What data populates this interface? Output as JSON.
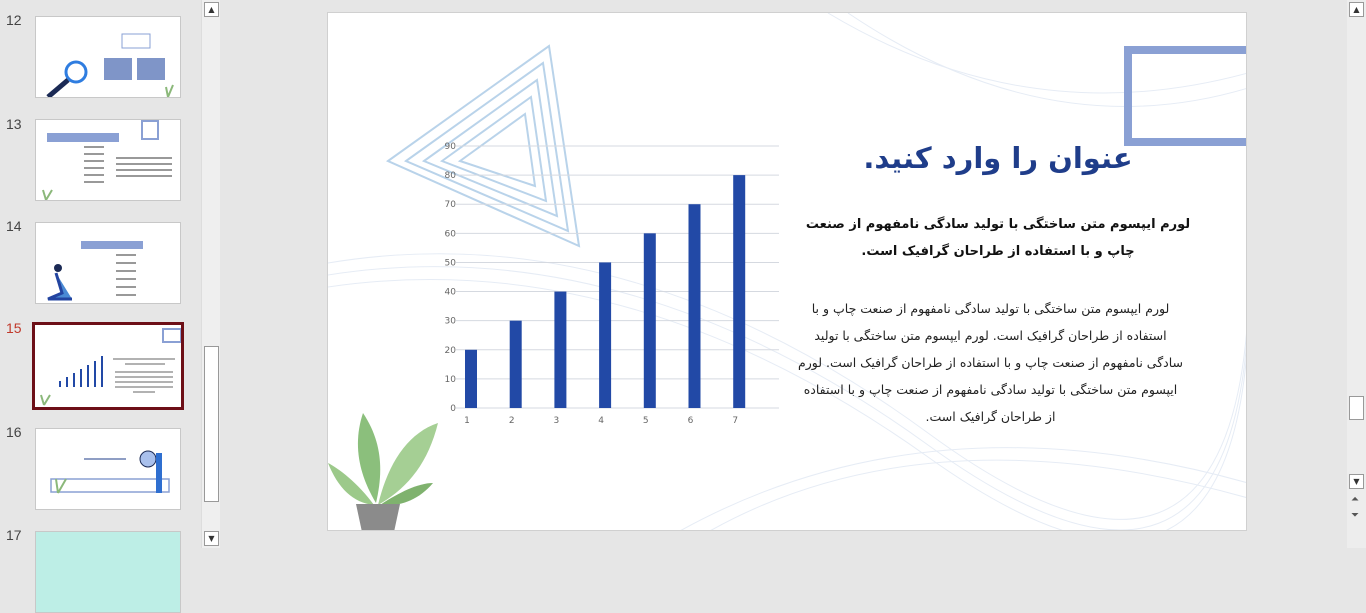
{
  "thumbnails": [
    {
      "number": "12"
    },
    {
      "number": "13"
    },
    {
      "number": "14"
    },
    {
      "number": "15",
      "selected": true
    },
    {
      "number": "16"
    },
    {
      "number": "17"
    }
  ],
  "slide": {
    "title": "عنوان را وارد کنید.",
    "bold_paragraph": "لورم ایپسوم متن ساختگی با تولید سادگی نامفهوم از صنعت چاپ و با استفاده از طراحان گرافیک است.",
    "body_paragraph": "لورم ایپسوم متن ساختگی با تولید سادگی نامفهوم از صنعت چاپ و با استفاده از طراحان گرافیک است. لورم ایپسوم متن ساختگی با تولید سادگی نامفهوم از صنعت چاپ و با استفاده از طراحان گرافیک است. لورم ایپسوم متن ساختگی با تولید سادگی نامفهوم از صنعت چاپ و با استفاده از طراحان گرافیک است."
  },
  "colors": {
    "accent": "#1f3d8a",
    "bar": "#2249a6",
    "selected_border": "#6d0f17",
    "frame": "#8aa0d4"
  },
  "chart_data": {
    "type": "bar",
    "categories": [
      "1",
      "2",
      "3",
      "4",
      "5",
      "6",
      "7"
    ],
    "values": [
      20,
      30,
      40,
      50,
      60,
      70,
      80
    ],
    "yticks": [
      "0",
      "10",
      "20",
      "30",
      "40",
      "50",
      "60",
      "70",
      "80",
      "90"
    ],
    "ylim": [
      0,
      90
    ],
    "grid": true
  }
}
